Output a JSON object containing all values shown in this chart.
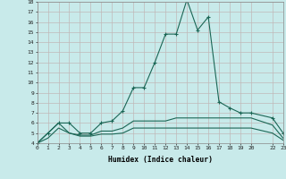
{
  "xlabel": "Humidex (Indice chaleur)",
  "bg_color": "#c8eaea",
  "grid_color": "#c0b8b8",
  "line_color": "#1a6655",
  "xlim": [
    0,
    23
  ],
  "ylim": [
    4,
    18
  ],
  "xtick_positions": [
    0,
    1,
    2,
    3,
    4,
    5,
    6,
    7,
    8,
    9,
    10,
    11,
    12,
    13,
    14,
    15,
    16,
    17,
    18,
    19,
    20,
    22,
    23
  ],
  "xtick_labels": [
    "0",
    "1",
    "2",
    "3",
    "4",
    "5",
    "6",
    "7",
    "8",
    "9",
    "10",
    "11",
    "12",
    "13",
    "14",
    "15",
    "16",
    "17",
    "18",
    "19",
    "20",
    "22",
    "23"
  ],
  "ytick_positions": [
    4,
    5,
    6,
    7,
    8,
    9,
    10,
    11,
    12,
    13,
    14,
    15,
    16,
    17,
    18
  ],
  "series1_x": [
    0,
    1,
    2,
    3,
    4,
    5,
    6,
    7,
    8,
    9,
    10,
    11,
    12,
    13,
    14,
    15,
    16,
    17,
    18,
    19,
    20,
    22,
    23
  ],
  "series1_y": [
    4,
    5,
    6,
    6,
    5,
    5,
    6,
    6.2,
    7.2,
    9.5,
    9.5,
    12,
    14.8,
    14.8,
    18.2,
    15.2,
    16.5,
    8.1,
    7.5,
    7.0,
    7.0,
    6.5,
    5.0
  ],
  "series2_x": [
    0,
    1,
    2,
    3,
    4,
    5,
    6,
    7,
    8,
    9,
    10,
    11,
    12,
    13,
    14,
    15,
    16,
    17,
    18,
    19,
    20,
    22,
    23
  ],
  "series2_y": [
    4,
    5,
    6,
    5,
    4.8,
    4.8,
    5.2,
    5.2,
    5.5,
    6.2,
    6.2,
    6.2,
    6.2,
    6.5,
    6.5,
    6.5,
    6.5,
    6.5,
    6.5,
    6.5,
    6.5,
    5.8,
    4.5
  ],
  "series3_x": [
    0,
    1,
    2,
    3,
    4,
    5,
    6,
    7,
    8,
    9,
    10,
    11,
    12,
    13,
    14,
    15,
    16,
    17,
    18,
    19,
    20,
    22,
    23
  ],
  "series3_y": [
    4,
    4.5,
    5.5,
    5.0,
    4.7,
    4.7,
    4.9,
    4.9,
    5.0,
    5.5,
    5.5,
    5.5,
    5.5,
    5.5,
    5.5,
    5.5,
    5.5,
    5.5,
    5.5,
    5.5,
    5.5,
    5.0,
    4.3
  ]
}
